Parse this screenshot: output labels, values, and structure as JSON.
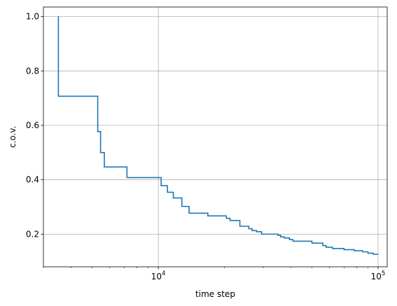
{
  "chart_data": {
    "type": "line",
    "title": "",
    "xlabel": "time step",
    "ylabel": "c.o.v.",
    "xscale": "log",
    "xlim": [
      3000,
      110000
    ],
    "ylim": [
      0.08,
      1.035
    ],
    "grid": true,
    "colors": {
      "line": "#1f77b4",
      "grid": "#b0b0b0",
      "axes": "#000000"
    },
    "x_major_ticks": [
      {
        "value": 10000,
        "base": "10",
        "exp": "4"
      },
      {
        "value": 100000,
        "base": "10",
        "exp": "5"
      }
    ],
    "x_minor_ticks": [
      3000,
      4000,
      5000,
      6000,
      7000,
      8000,
      9000,
      20000,
      30000,
      40000,
      50000,
      60000,
      70000,
      80000,
      90000
    ],
    "y_ticks": [
      {
        "value": 0.2,
        "label": "0.2"
      },
      {
        "value": 0.4,
        "label": "0.4"
      },
      {
        "value": 0.6,
        "label": "0.6"
      },
      {
        "value": 0.8,
        "label": "0.8"
      },
      {
        "value": 1.0,
        "label": "1.0"
      }
    ],
    "series": [
      {
        "step": "post",
        "x": [
          3500,
          3510,
          5300,
          5460,
          5680,
          6000,
          7200,
          10300,
          11000,
          11700,
          12800,
          13800,
          15000,
          16800,
          20400,
          21200,
          22000,
          23500,
          25800,
          26700,
          28000,
          29500,
          35000,
          36000,
          37500,
          39500,
          41000,
          44000,
          50000,
          56000,
          58000,
          62000,
          70000,
          78000,
          85000,
          90000,
          95000,
          100000
        ],
        "y": [
          1.0,
          0.707,
          0.577,
          0.5,
          0.447,
          0.447,
          0.408,
          0.378,
          0.354,
          0.333,
          0.302,
          0.277,
          0.277,
          0.267,
          0.258,
          0.25,
          0.25,
          0.229,
          0.22,
          0.213,
          0.209,
          0.2,
          0.196,
          0.19,
          0.186,
          0.18,
          0.174,
          0.174,
          0.167,
          0.158,
          0.152,
          0.147,
          0.143,
          0.139,
          0.135,
          0.13,
          0.126,
          0.125
        ]
      }
    ]
  }
}
